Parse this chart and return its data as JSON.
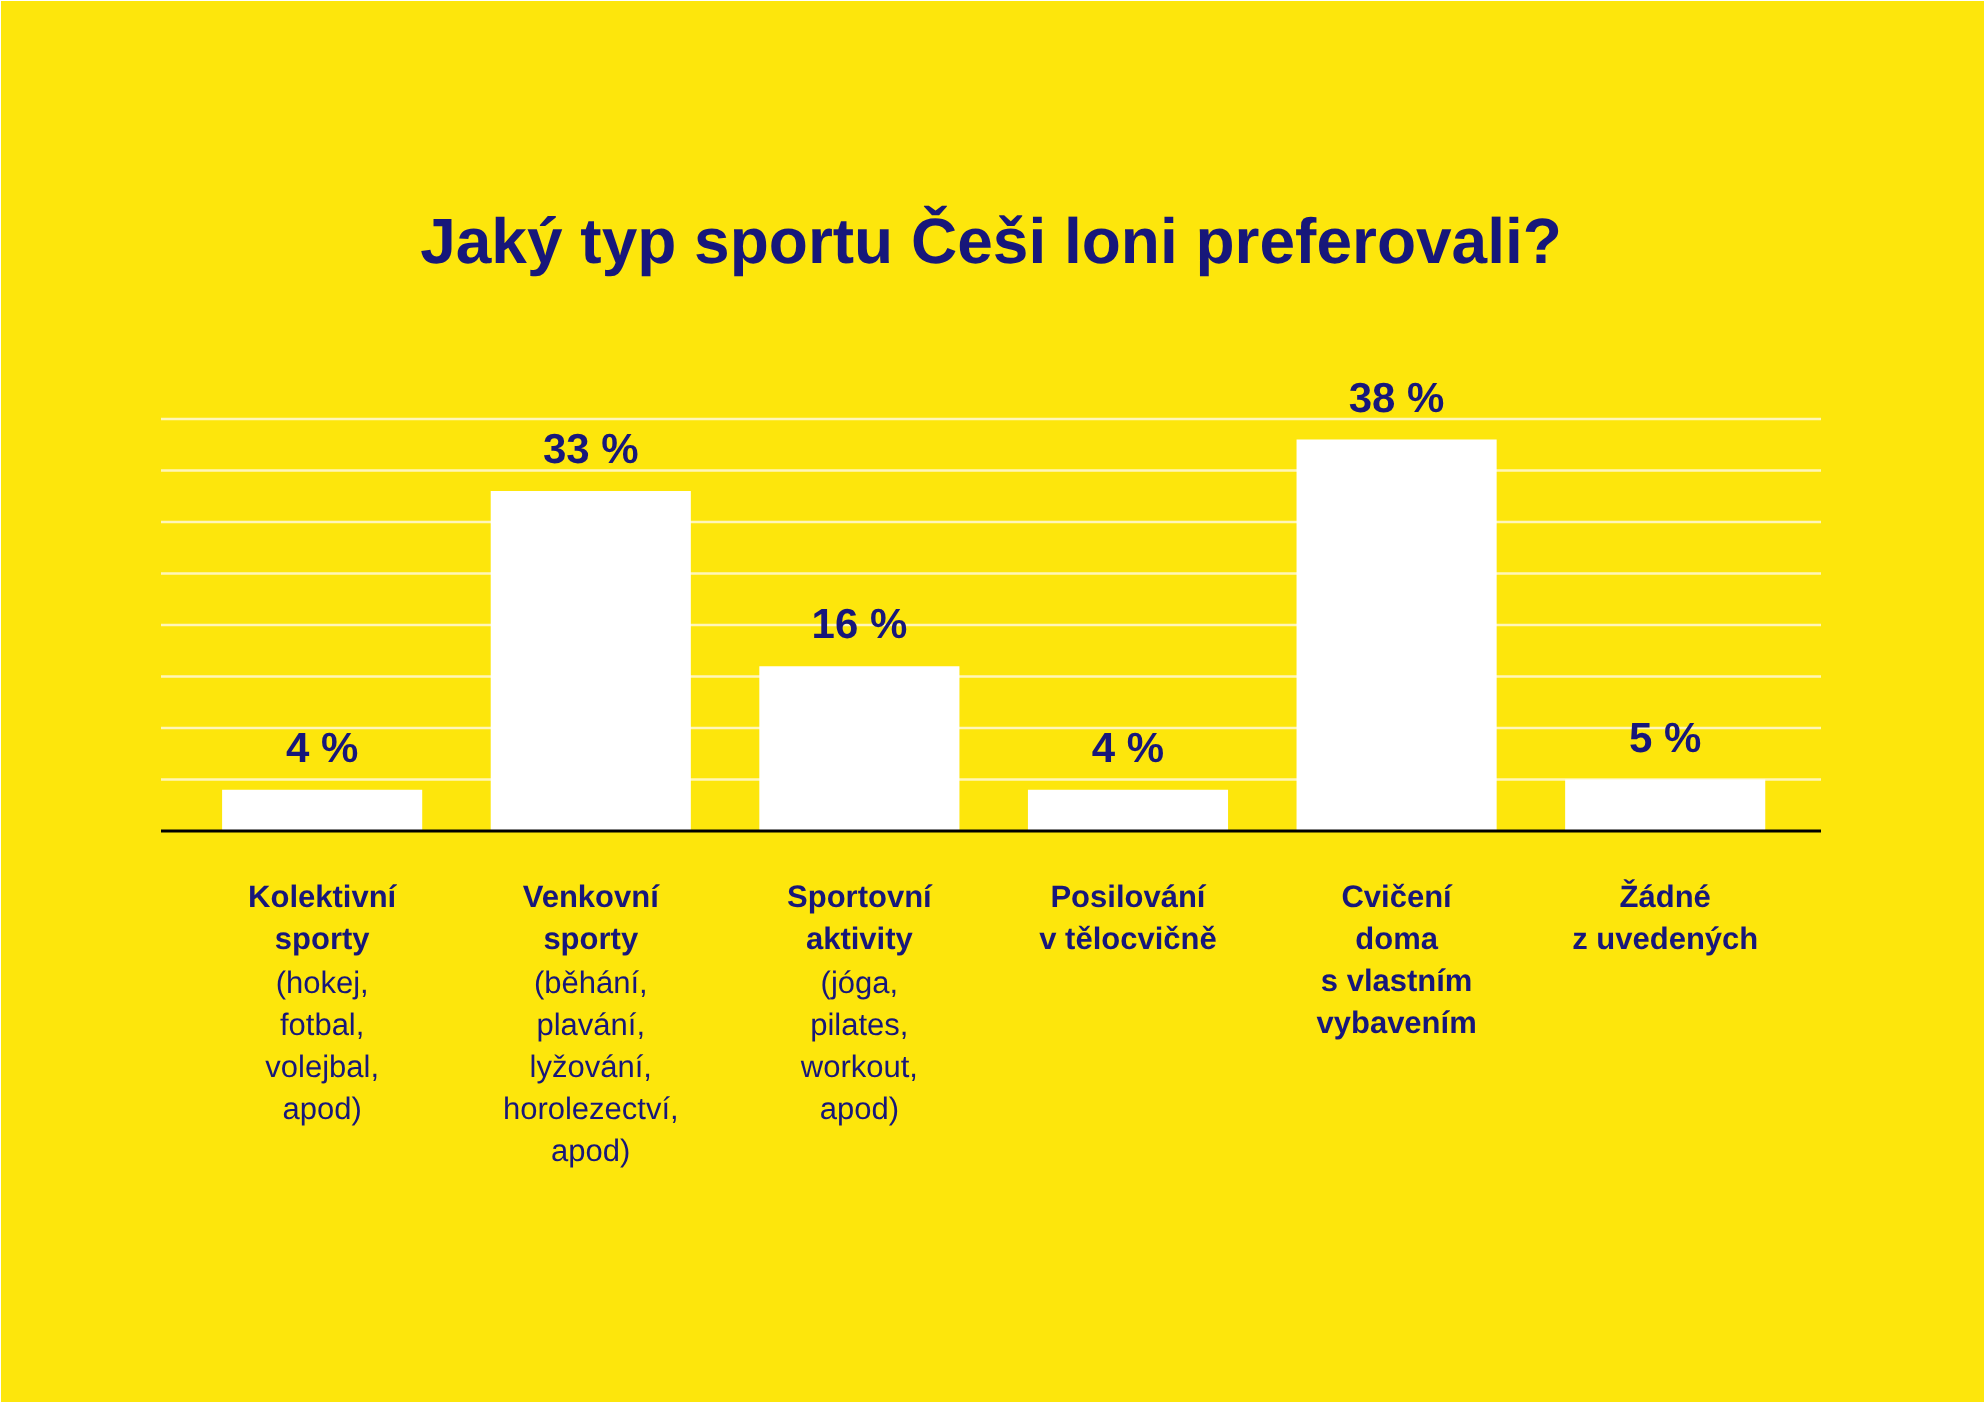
{
  "chart_data": {
    "type": "bar",
    "title": "Jaký typ sportu Češi loni preferovali?",
    "categories": [
      "Kolektivní\nsporty\n(hokej,\nfotbal,\nvolejbal,\napod)",
      "Venkovní\nsporty\n(běhání,\nplavání,\nlyžování,\nhorolezectví,\napod)",
      "Sportovní\naktivity\n(jóga,\npilates,\nworkout,\napod)",
      "Posilování\nv tělocvičně",
      "Cvičení\ndoma\ns vlastním\nvybavením",
      "Žádné\nz uvedených"
    ],
    "values": [
      4,
      33,
      16,
      4,
      38,
      5
    ],
    "color": "#ffffff",
    "value_labels": [
      "4 %",
      "33 %",
      "16 %",
      "4 %",
      "38 %",
      "5 %"
    ],
    "ylim": [
      0,
      40
    ],
    "yticks": [
      {
        "value": 5,
        "label": null
      },
      {
        "value": 10,
        "label": null
      },
      {
        "value": 15,
        "label": null
      },
      {
        "value": 20,
        "label": null
      },
      {
        "value": 25,
        "label": null
      },
      {
        "value": 30,
        "label": null
      },
      {
        "value": 35,
        "label": null
      },
      {
        "value": 40,
        "label": null
      }
    ],
    "grid": "y",
    "tick_labels": "x"
  }
}
